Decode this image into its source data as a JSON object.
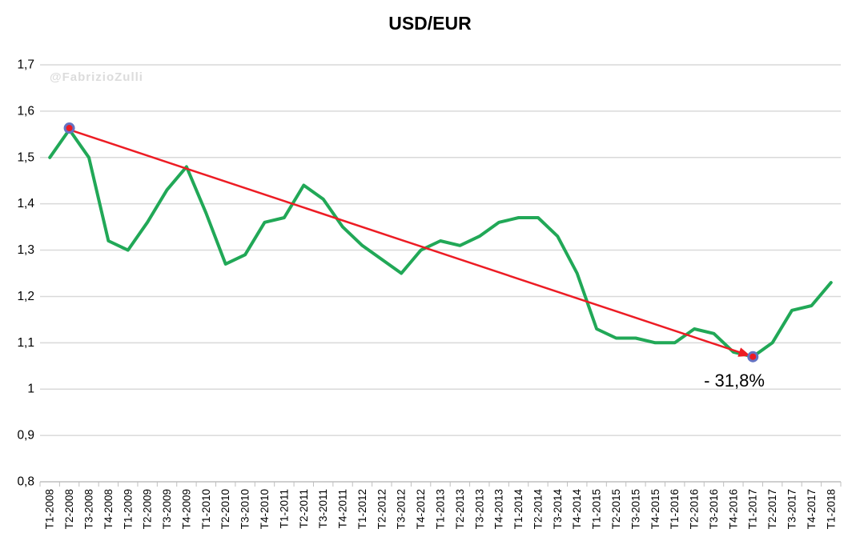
{
  "chart_data": {
    "type": "line",
    "title": "USD/EUR",
    "watermark": "@FabrizioZulli",
    "legend": "none",
    "gridlines": true,
    "categories": [
      "T1-2008",
      "T2-2008",
      "T3-2008",
      "T4-2008",
      "T1-2009",
      "T2-2009",
      "T3-2009",
      "T4-2009",
      "T1-2010",
      "T2-2010",
      "T3-2010",
      "T4-2010",
      "T1-2011",
      "T2-2011",
      "T3-2011",
      "T4-2011",
      "T1-2012",
      "T2-2012",
      "T3-2012",
      "T4-2012",
      "T1-2013",
      "T2-2013",
      "T3-2013",
      "T4-2013",
      "T1-2014",
      "T2-2014",
      "T3-2014",
      "T4-2014",
      "T1-2015",
      "T2-2015",
      "T3-2015",
      "T4-2015",
      "T1-2016",
      "T2-2016",
      "T3-2016",
      "T4-2016",
      "T1-2017",
      "T2-2017",
      "T3-2017",
      "T4-2017",
      "T1-2018"
    ],
    "series": [
      {
        "name": "USD/EUR",
        "color": "#21a857",
        "values": [
          1.5,
          1.56,
          1.5,
          1.32,
          1.3,
          1.36,
          1.43,
          1.48,
          1.38,
          1.27,
          1.29,
          1.36,
          1.37,
          1.44,
          1.41,
          1.35,
          1.31,
          1.28,
          1.25,
          1.3,
          1.32,
          1.31,
          1.33,
          1.36,
          1.37,
          1.37,
          1.33,
          1.25,
          1.13,
          1.11,
          1.11,
          1.1,
          1.1,
          1.13,
          1.12,
          1.08,
          1.07,
          1.1,
          1.17,
          1.18,
          1.23
        ]
      }
    ],
    "y_axis": {
      "min": 0.8,
      "max": 1.7,
      "tick_step": 0.1,
      "tick_labels": [
        "1,7",
        "1,6",
        "1,5",
        "1,4",
        "1,3",
        "1,2",
        "1,1",
        "1",
        "0,9",
        "0,8"
      ],
      "decimal_separator": ","
    },
    "x_axis": {
      "label_rotation": -90
    },
    "trendline": {
      "from_category": "T2-2008",
      "from_value": 1.56,
      "to_category": "T1-2017",
      "to_value": 1.07,
      "label": "- 31,8%",
      "color": "#ed1c24",
      "marker_fill": "#ed1c24",
      "marker_ring": "#6473c3"
    },
    "colors": {
      "grid": "#d9d9d9",
      "axis": "#bfbfbf",
      "text": "#000000"
    }
  }
}
